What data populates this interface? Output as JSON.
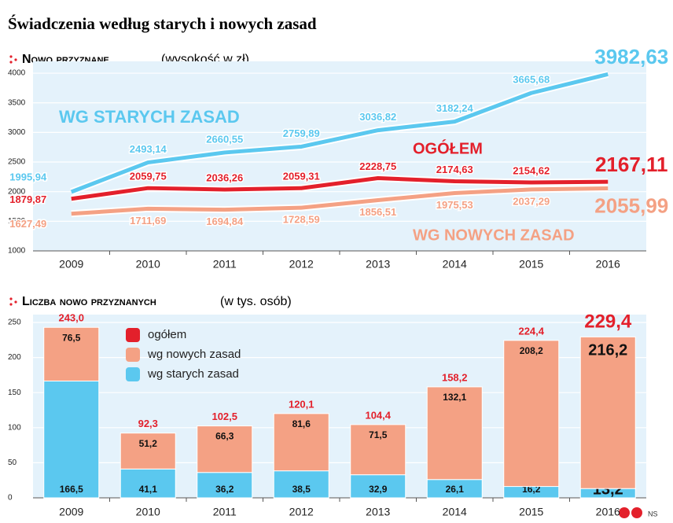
{
  "title": "Świadczenia według starych i nowych zasad",
  "credit": "NS",
  "chart_data": [
    {
      "type": "line",
      "title": "Nowo przyznane",
      "unit": "(wysokość w zł)",
      "categories": [
        "2009",
        "2010",
        "2011",
        "2012",
        "2013",
        "2014",
        "2015",
        "2016"
      ],
      "ylim": [
        1000,
        4200
      ],
      "yticks": [
        1000,
        1500,
        2000,
        2500,
        3000,
        3500,
        4000
      ],
      "grid": true,
      "series": [
        {
          "name": "WG STARYCH ZASAD",
          "color": "#5bc8ef",
          "values": [
            1995.94,
            2493.14,
            2660.55,
            2759.89,
            3036.82,
            3182.24,
            3665.68,
            3982.63
          ],
          "value_labels": [
            "1995,94",
            "2493,14",
            "2660,55",
            "2759,89",
            "3036,82",
            "3182,24",
            "3665,68",
            "3982,63"
          ]
        },
        {
          "name": "OGÓŁEM",
          "color": "#e3202b",
          "values": [
            1879.87,
            2059.75,
            2036.26,
            2059.31,
            2228.75,
            2174.63,
            2154.62,
            2167.11
          ],
          "value_labels": [
            "1879,87",
            "2059,75",
            "2036,26",
            "2059,31",
            "2228,75",
            "2174,63",
            "2154,62",
            "2167,11"
          ]
        },
        {
          "name": "WG NOWYCH ZASAD",
          "color": "#f4a184",
          "values": [
            1627.49,
            1711.69,
            1694.84,
            1728.59,
            1856.51,
            1975.53,
            2037.29,
            2055.99
          ],
          "value_labels": [
            "1627,49",
            "1711,69",
            "1694,84",
            "1728,59",
            "1856,51",
            "1975,53",
            "2037,29",
            "2055,99"
          ]
        }
      ]
    },
    {
      "type": "stacked_bar",
      "title": "Liczba nowo przyznanych",
      "unit": "(w tys. osób)",
      "categories": [
        "2009",
        "2010",
        "2011",
        "2012",
        "2013",
        "2014",
        "2015",
        "2016"
      ],
      "ylim": [
        0,
        250
      ],
      "yticks": [
        0,
        50,
        100,
        150,
        200,
        250
      ],
      "grid": true,
      "totals": {
        "name": "ogółem",
        "color": "#e3202b",
        "values": [
          243.0,
          92.3,
          102.5,
          120.1,
          104.4,
          158.2,
          224.4,
          229.4
        ],
        "value_labels": [
          "243,0",
          "92,3",
          "102,5",
          "120,1",
          "104,4",
          "158,2",
          "224,4",
          "229,4"
        ]
      },
      "series": [
        {
          "name": "wg starych zasad",
          "color": "#5bc8ef",
          "values": [
            166.5,
            41.1,
            36.2,
            38.5,
            32.9,
            26.1,
            16.2,
            13.2
          ],
          "value_labels": [
            "166,5",
            "41,1",
            "36,2",
            "38,5",
            "32,9",
            "26,1",
            "16,2",
            "13,2"
          ]
        },
        {
          "name": "wg nowych zasad",
          "color": "#f4a184",
          "values": [
            76.5,
            51.2,
            66.3,
            81.6,
            71.5,
            132.1,
            208.2,
            216.2
          ],
          "value_labels": [
            "76,5",
            "51,2",
            "66,3",
            "81,6",
            "71,5",
            "132,1",
            "208,2",
            "216,2"
          ]
        }
      ]
    }
  ]
}
